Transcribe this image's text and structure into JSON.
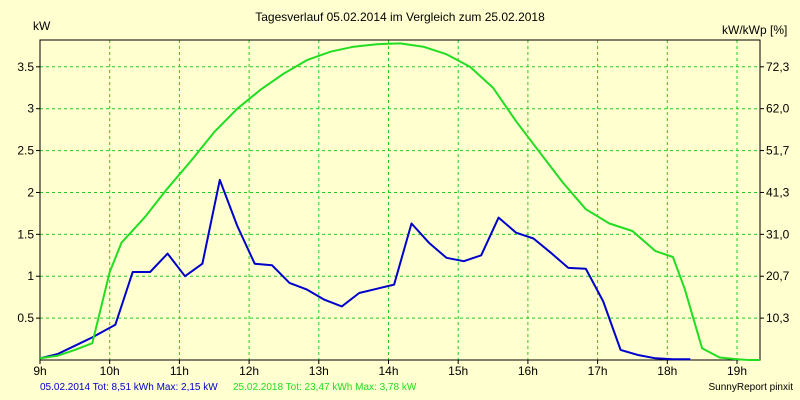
{
  "chart_data": {
    "type": "line",
    "title": "Tagesverlauf 05.02.2014 im Vergleich zum 25.02.2018",
    "ylabel_left": "kW",
    "ylabel_right": "kW/kWp [%]",
    "xlim": [
      9.0,
      19.33
    ],
    "ylim": [
      0,
      3.82
    ],
    "grid": true,
    "x_ticks": [
      9,
      10,
      11,
      12,
      13,
      14,
      15,
      16,
      17,
      18,
      19
    ],
    "x_tick_labels": [
      "9h",
      "10h",
      "11h",
      "12h",
      "13h",
      "14h",
      "15h",
      "16h",
      "17h",
      "18h",
      "19h"
    ],
    "y_ticks": [
      0.5,
      1,
      1.5,
      2,
      2.5,
      3,
      3.5
    ],
    "y_tick_labels": [
      "0.5",
      "1",
      "1.5",
      "2",
      "2.5",
      "3",
      "3.5"
    ],
    "y2_tick_labels": [
      "10,3",
      "20,7",
      "31,0",
      "41,3",
      "51,7",
      "62,0",
      "72,3"
    ],
    "colors": {
      "background": "#ffffd0",
      "grid": "#22cc22",
      "frame": "#000000"
    },
    "series": [
      {
        "name": "05.02.2014",
        "color": "#0000cc",
        "x": [
          9.0,
          9.25,
          9.5,
          9.75,
          10.08,
          10.33,
          10.58,
          10.83,
          11.08,
          11.33,
          11.58,
          11.83,
          12.08,
          12.33,
          12.58,
          12.83,
          13.08,
          13.33,
          13.58,
          13.83,
          14.08,
          14.33,
          14.58,
          14.83,
          15.08,
          15.33,
          15.58,
          15.83,
          16.08,
          16.33,
          16.58,
          16.83,
          17.08,
          17.33,
          17.58,
          17.83,
          18.08,
          18.33
        ],
        "y": [
          0.02,
          0.07,
          0.17,
          0.27,
          0.42,
          1.05,
          1.05,
          1.27,
          1.0,
          1.15,
          2.15,
          1.6,
          1.15,
          1.13,
          0.92,
          0.84,
          0.72,
          0.64,
          0.8,
          0.85,
          0.9,
          1.63,
          1.4,
          1.22,
          1.18,
          1.25,
          1.7,
          1.52,
          1.45,
          1.28,
          1.1,
          1.09,
          0.7,
          0.12,
          0.06,
          0.02,
          0.01,
          0.01
        ]
      },
      {
        "name": "25.02.2018",
        "color": "#22dd22",
        "x": [
          9.0,
          9.25,
          9.5,
          9.75,
          10.0,
          10.17,
          10.5,
          10.83,
          11.17,
          11.5,
          11.83,
          12.17,
          12.5,
          12.83,
          13.17,
          13.5,
          13.83,
          14.17,
          14.5,
          14.83,
          15.17,
          15.5,
          15.83,
          16.17,
          16.5,
          16.83,
          17.17,
          17.5,
          17.83,
          18.08,
          18.25,
          18.5,
          18.75,
          19.0,
          19.17,
          19.33
        ],
        "y": [
          0.02,
          0.05,
          0.12,
          0.2,
          1.05,
          1.4,
          1.7,
          2.05,
          2.38,
          2.72,
          3.0,
          3.23,
          3.42,
          3.58,
          3.68,
          3.74,
          3.77,
          3.78,
          3.74,
          3.65,
          3.5,
          3.25,
          2.85,
          2.48,
          2.12,
          1.8,
          1.63,
          1.54,
          1.3,
          1.23,
          0.85,
          0.14,
          0.03,
          0.01,
          0.0,
          0.0
        ]
      }
    ]
  },
  "footer": {
    "series1_text": "05.02.2014 Tot: 8,51 kWh Max: 2,15 kW",
    "series2_text": "25.02.2018 Tot: 23,47 kWh Max: 3,78 kW",
    "brand": "SunnyReport pinxit",
    "series1_color": "#0000cc",
    "series2_color": "#22dd22"
  }
}
